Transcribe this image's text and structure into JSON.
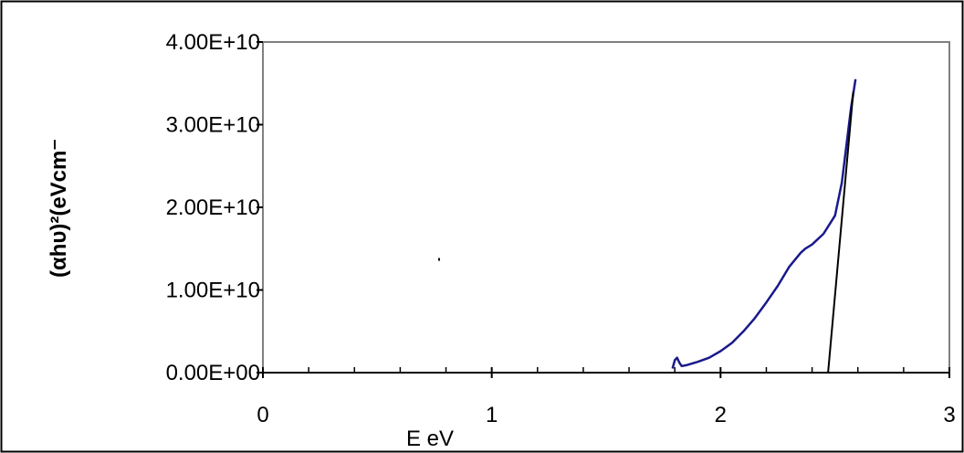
{
  "chart_data": {
    "type": "line",
    "title": "",
    "xlabel": "E eV",
    "ylabel": "(αhυ)²(eVcm⁻",
    "xlim": [
      0,
      3
    ],
    "ylim": [
      0,
      40000000000
    ],
    "x_ticks": [
      0,
      1,
      2,
      3
    ],
    "x_tick_labels": [
      "0",
      "1",
      "2",
      "3"
    ],
    "y_ticks": [
      0,
      10000000000,
      20000000000,
      30000000000,
      40000000000
    ],
    "y_tick_labels": [
      "0.00E+00",
      "1.00E+10",
      "2.00E+10",
      "3.00E+10",
      "4.00E+10"
    ],
    "x_minor_step": 0.2,
    "grid": false,
    "legend": "none",
    "series": [
      {
        "color": "#1a1a8c",
        "x": [
          1.79,
          1.8,
          1.81,
          1.82,
          1.83,
          1.85,
          1.9,
          1.95,
          2.0,
          2.05,
          2.1,
          2.15,
          2.2,
          2.25,
          2.3,
          2.35,
          2.37,
          2.4,
          2.45,
          2.5,
          2.53,
          2.55,
          2.57,
          2.59
        ],
        "y": [
          500000000.0,
          1500000000.0,
          1800000000.0,
          1200000000.0,
          800000000.0,
          900000000.0,
          1300000000.0,
          1800000000.0,
          2600000000.0,
          3600000000.0,
          5000000000.0,
          6600000000.0,
          8500000000.0,
          10500000000.0,
          12800000000.0,
          14500000000.0,
          15000000000.0,
          15500000000.0,
          16800000000.0,
          19000000000.0,
          23000000000.0,
          27500000000.0,
          32000000000.0,
          35500000000.0
        ]
      },
      {
        "color": "#000000",
        "x": [
          2.47,
          2.58
        ],
        "y": [
          0,
          34000000000.0
        ]
      }
    ],
    "annotations": [
      {
        "type": "dot",
        "x": 0.77,
        "y": 13700000000.0,
        "color": "#000000"
      }
    ],
    "colors": {
      "frame": "#000000",
      "plot_border": "#808080",
      "axis": "#000000"
    }
  }
}
